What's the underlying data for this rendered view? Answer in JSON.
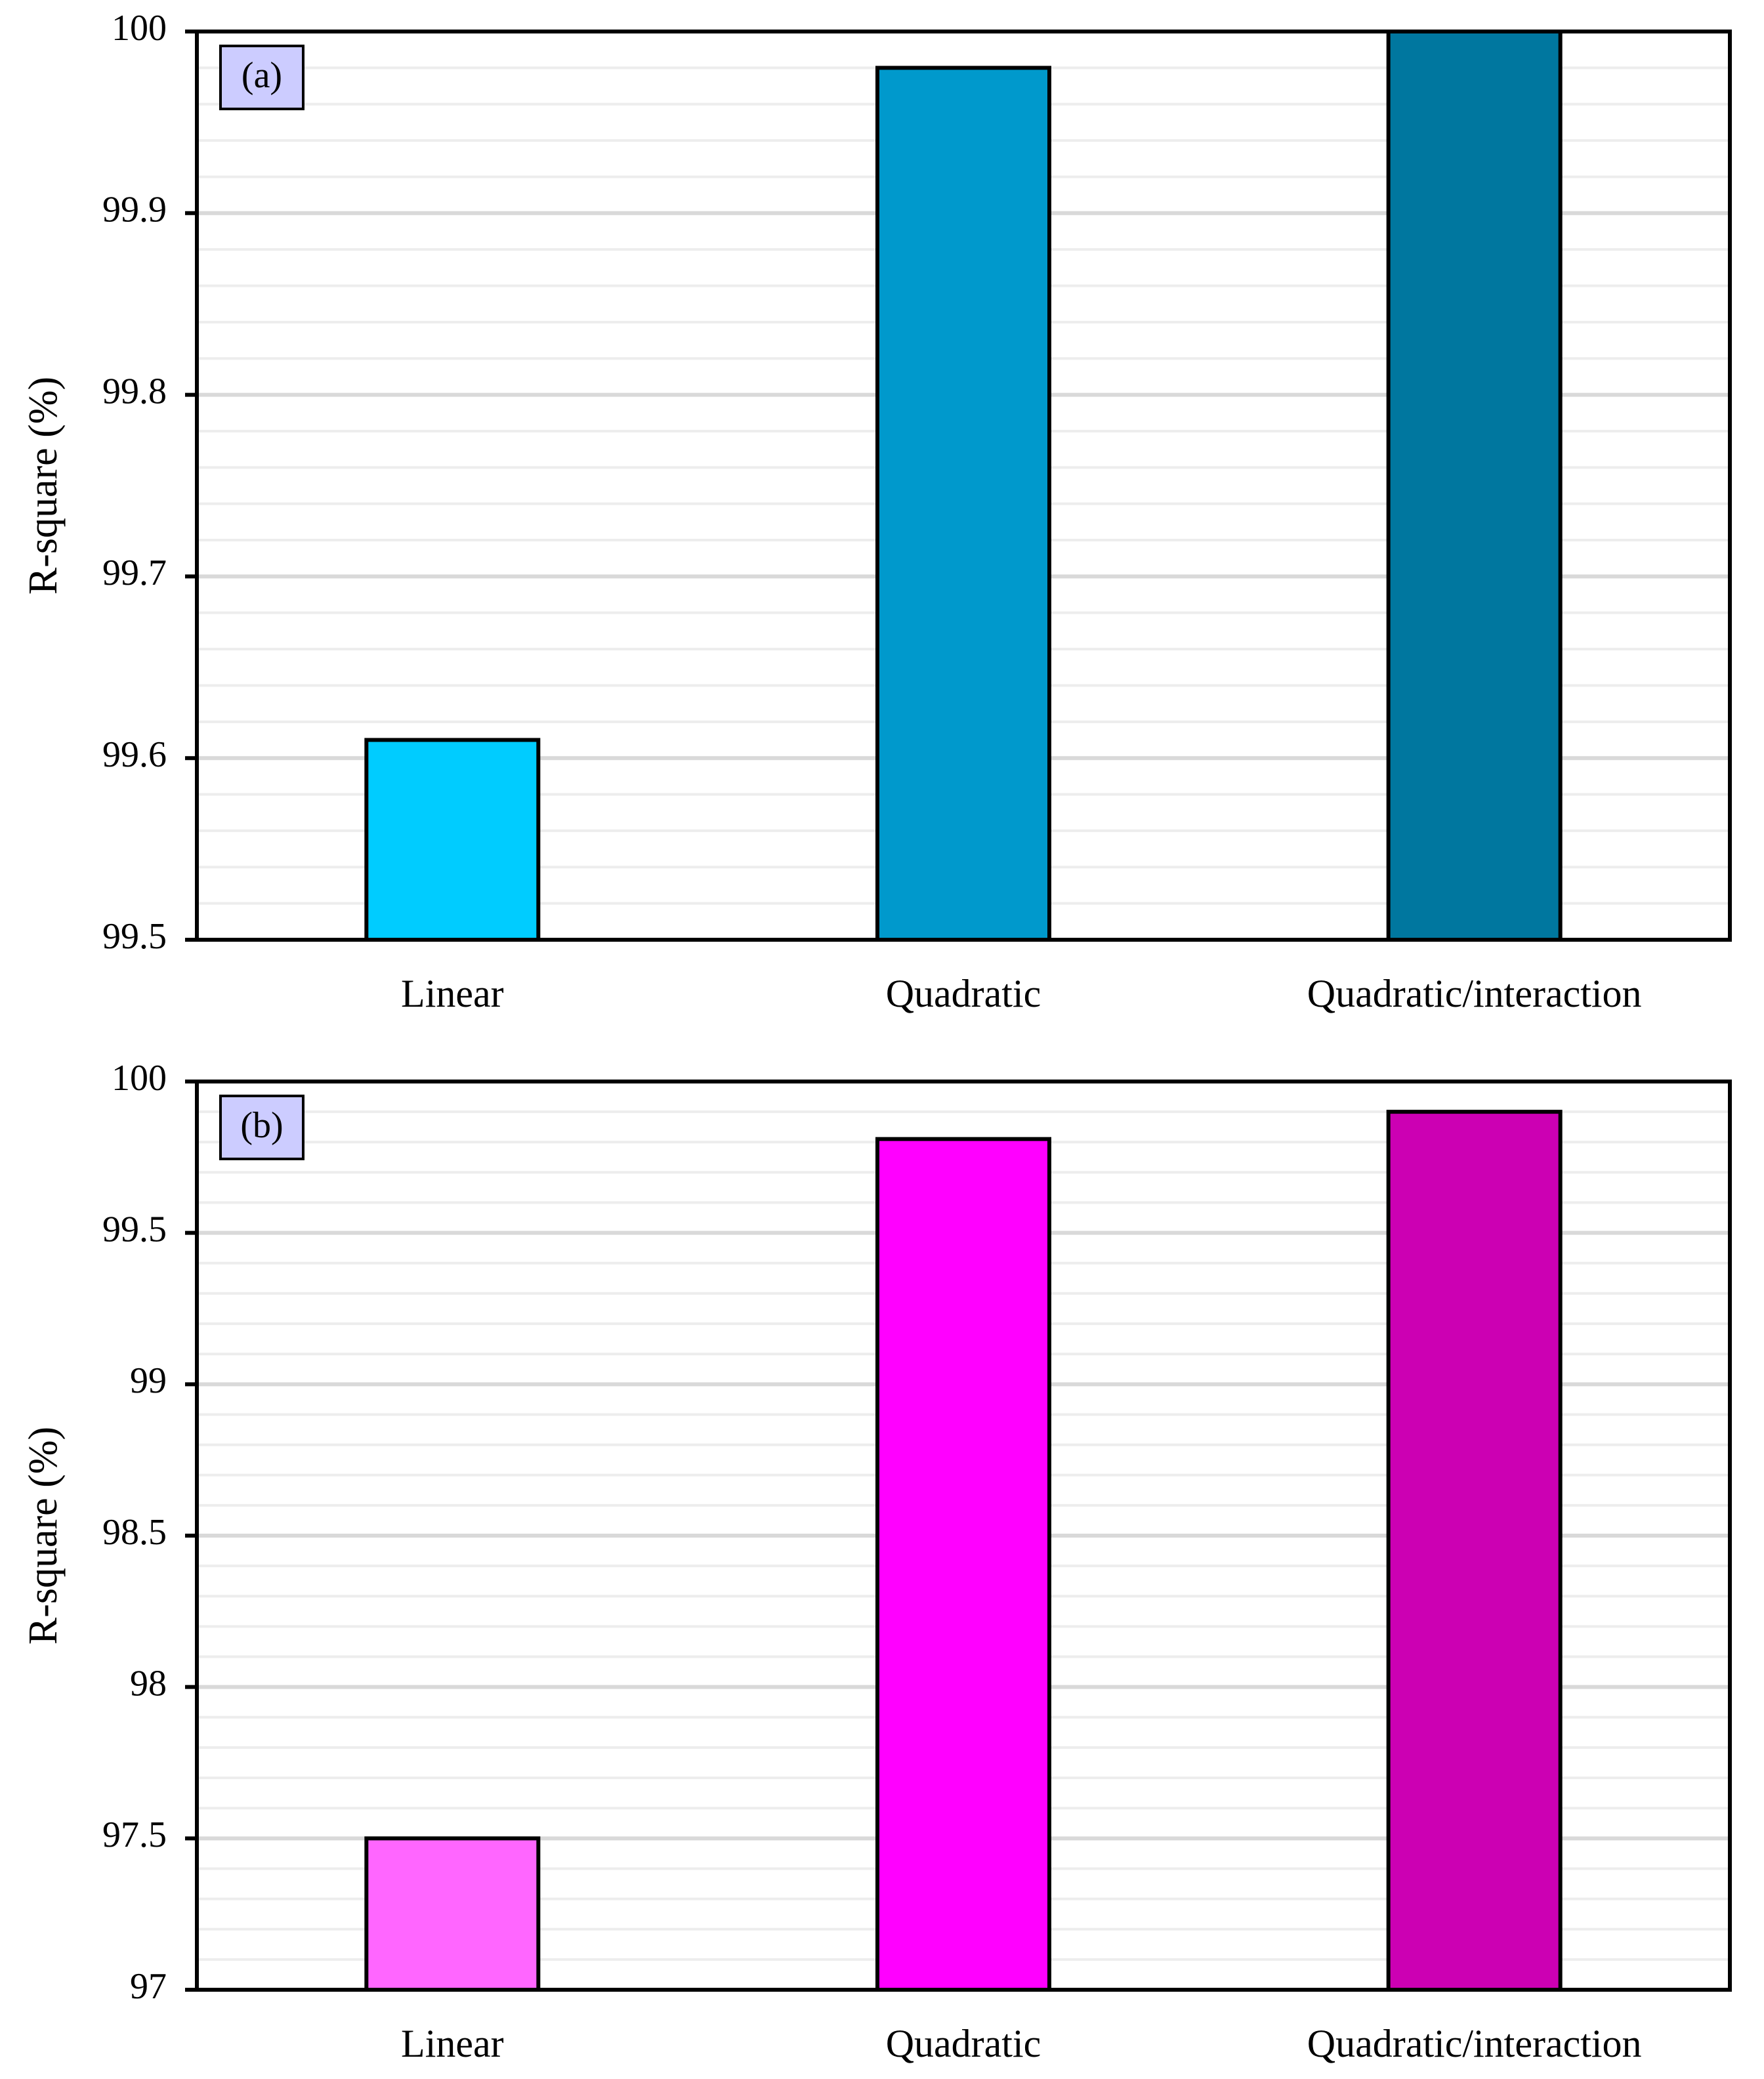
{
  "chart_data": [
    {
      "type": "bar",
      "panel_label": "(a)",
      "title": "",
      "xlabel": "",
      "ylabel": "R-square (%)",
      "categories": [
        "Linear",
        "Quadratic",
        "Quadratic/interaction"
      ],
      "values": [
        99.61,
        99.98,
        100.0
      ],
      "colors": [
        "#00CCFF",
        "#0099CC",
        "#00779F"
      ],
      "ylim": [
        99.5,
        100
      ],
      "yticks": [
        "99.5",
        "99.6",
        "99.7",
        "99.8",
        "99.9",
        "100"
      ],
      "major_step": 0.1,
      "minor_step": 0.02,
      "grid": true,
      "legend": "none"
    },
    {
      "type": "bar",
      "panel_label": "(b)",
      "title": "",
      "xlabel": "",
      "ylabel": "R-square (%)",
      "categories": [
        "Linear",
        "Quadratic",
        "Quadratic/interaction"
      ],
      "values": [
        97.5,
        99.81,
        99.9
      ],
      "colors": [
        "#FF66FF",
        "#FF00FF",
        "#CC00B3"
      ],
      "ylim": [
        97,
        100
      ],
      "yticks": [
        "97",
        "97.5",
        "98",
        "98.5",
        "99",
        "99.5",
        "100"
      ],
      "major_step": 0.5,
      "minor_step": 0.1,
      "grid": true,
      "legend": "none"
    }
  ],
  "style": {
    "tag_fill": "#CCCCFF",
    "major_grid_color": "#D9D9D9",
    "minor_grid_color": "#EDEDED",
    "axis_color": "#000000"
  }
}
